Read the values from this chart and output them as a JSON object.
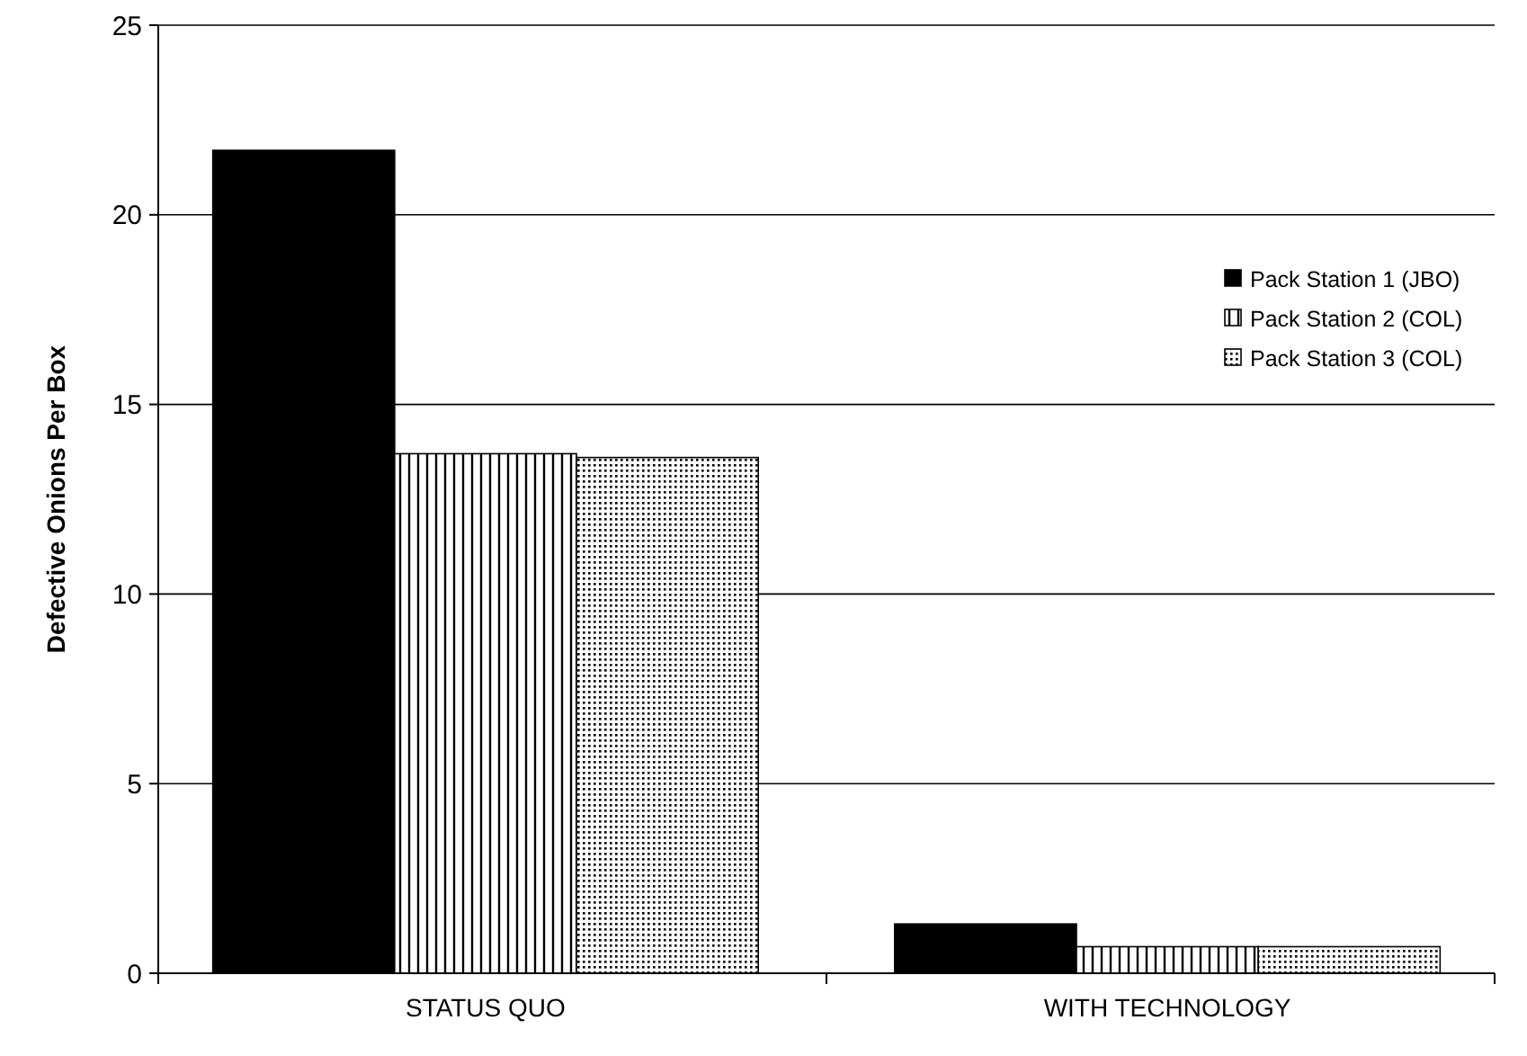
{
  "chart_data": {
    "type": "bar",
    "ylabel": "Defective Onions Per Box",
    "categories": [
      "STATUS QUO",
      "WITH TECHNOLOGY"
    ],
    "series": [
      {
        "name": "Pack Station 1 (JBO)",
        "color": "#000000",
        "values": [
          21.7,
          1.3
        ]
      },
      {
        "name": "Pack Station 2 (COL)",
        "color": "#000000",
        "values": [
          13.7,
          0.7
        ]
      },
      {
        "name": "Pack Station 3 (COL)",
        "color": "#000000",
        "values": [
          13.6,
          0.7
        ]
      }
    ],
    "ylim": [
      0,
      25
    ],
    "yticks": [
      0,
      5,
      10,
      15,
      20,
      25
    ],
    "grid": "y",
    "legend": "top right"
  }
}
